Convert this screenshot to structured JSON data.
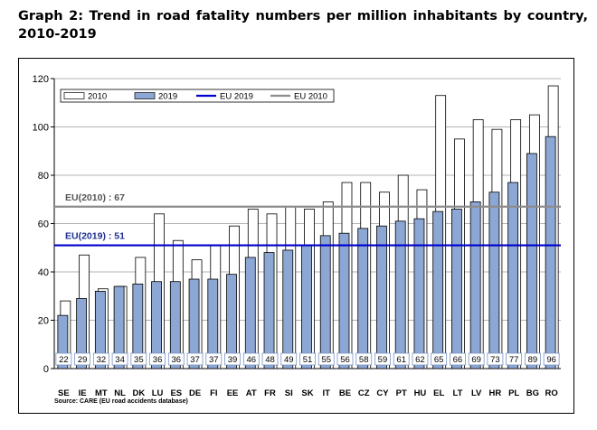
{
  "heading": "Graph 2: Trend in road fatality numbers per million inhabitants by country, 2010-2019",
  "chart_data": {
    "type": "bar",
    "title": "",
    "xlabel": "",
    "ylabel": "",
    "ylim": [
      0,
      120
    ],
    "yticks": [
      0,
      20,
      40,
      60,
      80,
      100,
      120
    ],
    "grid": true,
    "legend_position": "top-left",
    "categories": [
      "SE",
      "IE",
      "MT",
      "NL",
      "DK",
      "LU",
      "ES",
      "DE",
      "FI",
      "EE",
      "AT",
      "FR",
      "SI",
      "SK",
      "IT",
      "BE",
      "CZ",
      "CY",
      "PT",
      "HU",
      "EL",
      "LT",
      "LV",
      "HR",
      "PL",
      "BG",
      "RO"
    ],
    "series": [
      {
        "name": "2010",
        "color": "#ffffff",
        "values": [
          28,
          47,
          33,
          34,
          46,
          64,
          53,
          45,
          51,
          59,
          66,
          64,
          67,
          66,
          69,
          77,
          77,
          73,
          80,
          74,
          113,
          95,
          103,
          99,
          103,
          105,
          117
        ]
      },
      {
        "name": "2019",
        "color": "#8ca7d4",
        "values": [
          22,
          29,
          32,
          34,
          35,
          36,
          36,
          37,
          37,
          39,
          46,
          48,
          49,
          51,
          55,
          56,
          58,
          59,
          61,
          62,
          65,
          66,
          69,
          73,
          77,
          89,
          96
        ]
      }
    ],
    "value_labels": [
      "22",
      "29",
      "32",
      "34",
      "35",
      "36",
      "36",
      "37",
      "37",
      "39",
      "46",
      "48",
      "49",
      "51",
      "55",
      "56",
      "58",
      "59",
      "61",
      "62",
      "65",
      "66",
      "69",
      "73",
      "77",
      "89",
      "96"
    ],
    "reference_lines": [
      {
        "name": "EU 2019",
        "value": 51,
        "color": "#0000cc",
        "annotation": "EU(2019) : 51"
      },
      {
        "name": "EU 2010",
        "value": 67,
        "color": "#8c8c8c",
        "annotation": "EU(2010) : 67"
      }
    ],
    "legend_labels": [
      "2010",
      "2019",
      "EU 2019",
      "EU 2010"
    ],
    "source": "Source: CARE (EU road accidents database)"
  }
}
